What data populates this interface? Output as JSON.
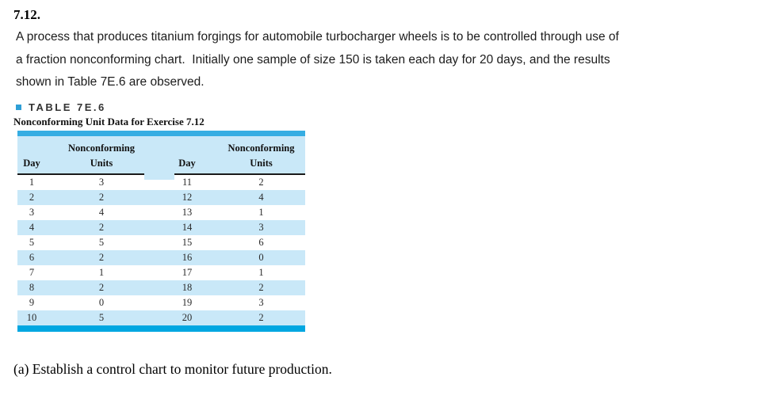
{
  "page": {
    "exercise_number": "7.12.",
    "paragraph_lines": [
      "A process that produces titanium forgings for automobile turbocharger wheels is to be controlled through use of",
      "a fraction nonconforming chart.  Initially one sample of size 150 is taken each day for 20 days, and the results",
      "shown in Table 7E.6 are observed."
    ],
    "question_a": "(a) Establish a control chart to monitor future production."
  },
  "table": {
    "label": "TABLE 7E.6",
    "caption": "Nonconforming Unit Data for Exercise 7.12",
    "headers": [
      {
        "top": "",
        "bottom": "Day"
      },
      {
        "top": "Nonconforming",
        "bottom": "Units"
      },
      {
        "top": "",
        "bottom": "Day"
      },
      {
        "top": "Nonconforming",
        "bottom": "Units"
      }
    ],
    "rows": [
      [
        "1",
        "3",
        "11",
        "2"
      ],
      [
        "2",
        "2",
        "12",
        "4"
      ],
      [
        "3",
        "4",
        "13",
        "1"
      ],
      [
        "4",
        "2",
        "14",
        "3"
      ],
      [
        "5",
        "5",
        "15",
        "6"
      ],
      [
        "6",
        "2",
        "16",
        "0"
      ],
      [
        "7",
        "1",
        "17",
        "1"
      ],
      [
        "8",
        "2",
        "18",
        "2"
      ],
      [
        "9",
        "0",
        "19",
        "3"
      ],
      [
        "10",
        "5",
        "20",
        "2"
      ]
    ]
  },
  "colors": {
    "bar_blue_top": "#35ade3",
    "bar_blue_bottom": "#00a7e1",
    "stripe_blue": "#c9e8f8",
    "bullet_blue": "#2e9fd6"
  }
}
